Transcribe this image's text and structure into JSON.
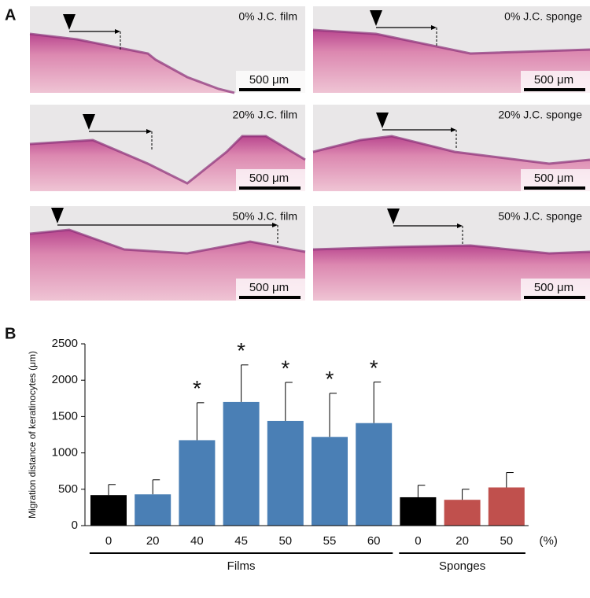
{
  "panel_labels": [
    "A",
    "B"
  ],
  "panel_a": {
    "images": [
      {
        "caption": "0% J.C. film",
        "scale": "500 μm"
      },
      {
        "caption": "0% J.C. sponge",
        "scale": "500 μm"
      },
      {
        "caption": "20% J.C. film",
        "scale": "500 μm"
      },
      {
        "caption": "20% J.C. sponge",
        "scale": "500 μm"
      },
      {
        "caption": "50% J.C. film",
        "scale": "500 μm"
      },
      {
        "caption": "50% J.C. sponge",
        "scale": "500 μm"
      }
    ]
  },
  "chart_data": {
    "type": "bar",
    "ylabel": "Migration distance of keratinocytes (μm)",
    "categories": [
      "0",
      "20",
      "40",
      "45",
      "50",
      "55",
      "60",
      "0",
      "20",
      "50"
    ],
    "values": [
      420,
      430,
      1175,
      1700,
      1440,
      1220,
      1410,
      390,
      355,
      525
    ],
    "errors": [
      145,
      200,
      515,
      510,
      530,
      600,
      565,
      165,
      145,
      205
    ],
    "colors": [
      "#000000",
      "#4a7fb5",
      "#4a7fb5",
      "#4a7fb5",
      "#4a7fb5",
      "#4a7fb5",
      "#4a7fb5",
      "#000000",
      "#c0504d",
      "#c0504d"
    ],
    "significance": [
      null,
      null,
      "*",
      "*",
      "*",
      "*",
      "*",
      null,
      null,
      null
    ],
    "unit_label": "(%)",
    "groups": [
      {
        "label": "Films",
        "start": 0,
        "end": 6
      },
      {
        "label": "Sponges",
        "start": 7,
        "end": 9
      }
    ],
    "ylim": [
      0,
      2500
    ],
    "yticks": [
      0,
      500,
      1000,
      1500,
      2000,
      2500
    ]
  }
}
